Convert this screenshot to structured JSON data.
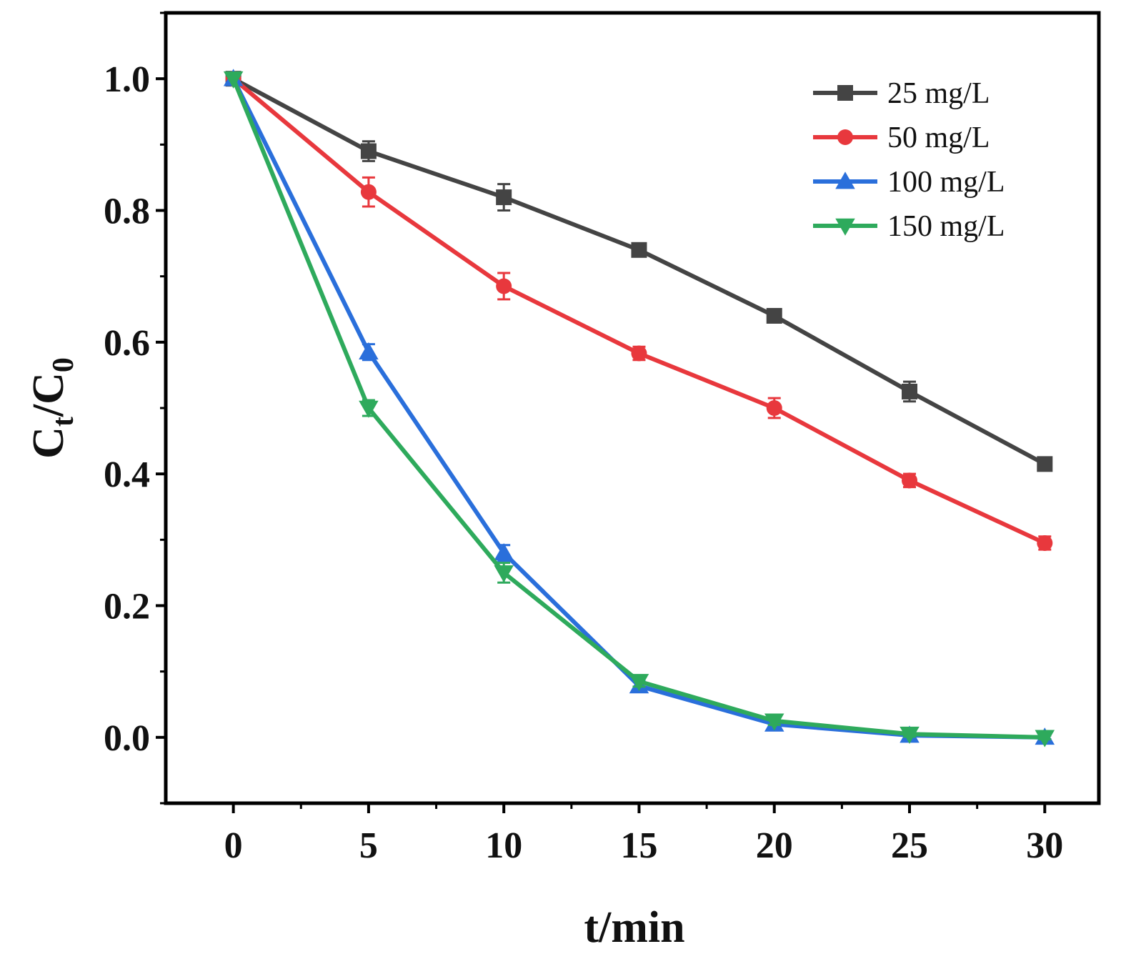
{
  "chart_data": {
    "type": "line",
    "title": "",
    "xlabel": "t/min",
    "ylabel": {
      "main": "C",
      "sub1": "t",
      "slash": "/C",
      "sub2": "0"
    },
    "xlim": [
      -2.5,
      32
    ],
    "ylim": [
      -0.1,
      1.1
    ],
    "x": [
      0,
      5,
      10,
      15,
      20,
      25,
      30
    ],
    "xticks": [
      "0",
      "5",
      "10",
      "15",
      "20",
      "25",
      "30"
    ],
    "yticks": [
      "0.0",
      "0.2",
      "0.4",
      "0.6",
      "0.8",
      "1.0"
    ],
    "ytick_values": [
      0.0,
      0.2,
      0.4,
      0.6,
      0.8,
      1.0
    ],
    "legend_position": "top-right",
    "grid": false,
    "series": [
      {
        "name": "25 mg/L",
        "color": "#444444",
        "marker": "square",
        "values": [
          1.0,
          0.89,
          0.82,
          0.74,
          0.64,
          0.525,
          0.415
        ],
        "errors": [
          0.0,
          0.015,
          0.02,
          0.01,
          0.01,
          0.015,
          0.01
        ]
      },
      {
        "name": "50 mg/L",
        "color": "#e8383d",
        "marker": "circle",
        "values": [
          1.0,
          0.828,
          0.685,
          0.583,
          0.5,
          0.39,
          0.295
        ],
        "errors": [
          0.0,
          0.022,
          0.02,
          0.01,
          0.015,
          0.01,
          0.01
        ]
      },
      {
        "name": "100 mg/L",
        "color": "#2a6fdb",
        "marker": "triangle-up",
        "values": [
          1.0,
          0.585,
          0.28,
          0.078,
          0.02,
          0.003,
          0.0
        ],
        "errors": [
          0.0,
          0.012,
          0.012,
          0.008,
          0.006,
          0.004,
          0.003
        ]
      },
      {
        "name": "150 mg/L",
        "color": "#2eaa5c",
        "marker": "triangle-down",
        "values": [
          1.0,
          0.5,
          0.25,
          0.085,
          0.025,
          0.005,
          0.0
        ],
        "errors": [
          0.0,
          0.012,
          0.015,
          0.008,
          0.006,
          0.004,
          0.003
        ]
      }
    ]
  }
}
